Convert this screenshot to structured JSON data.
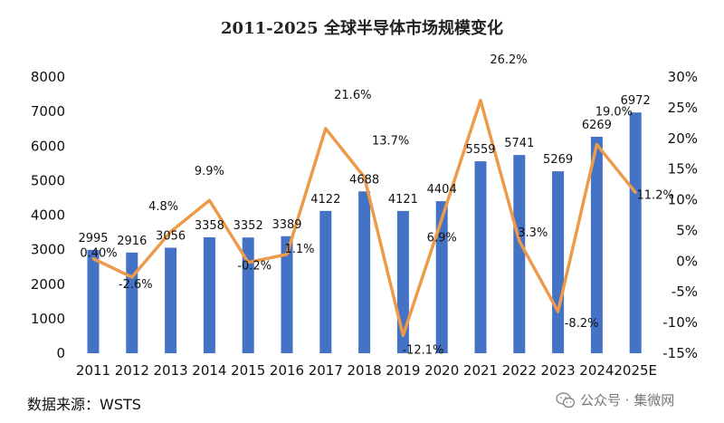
{
  "chart_data": {
    "type": "bar+line",
    "title": "2011-2025 全球半导体市场规模变化",
    "categories": [
      "2011",
      "2012",
      "2013",
      "2014",
      "2015",
      "2016",
      "2017",
      "2018",
      "2019",
      "2020",
      "2021",
      "2022",
      "2023",
      "2024",
      "2025E"
    ],
    "series": [
      {
        "kind": "bar",
        "axis": "left",
        "values": [
          2995,
          2916,
          3056,
          3358,
          3352,
          3389,
          4122,
          4688,
          4121,
          4404,
          5559,
          5741,
          5269,
          6269,
          6972
        ],
        "labels": [
          "2995",
          "2916",
          "3056",
          "3358",
          "3352",
          "3389",
          "4122",
          "4688",
          "4121",
          "4404",
          "5559",
          "5741",
          "5269",
          "6269",
          "6972"
        ]
      },
      {
        "kind": "line",
        "axis": "right",
        "values": [
          0.4,
          -2.6,
          4.8,
          9.9,
          -0.2,
          1.1,
          21.6,
          13.7,
          -12.1,
          6.9,
          26.2,
          3.3,
          -8.2,
          19.0,
          11.2
        ],
        "labels": [
          "0.40%",
          "-2.6%",
          "4.8%",
          "9.9%",
          "-0.2%",
          "1.1%",
          "21.6%",
          "13.7%",
          "-12.1%",
          "6.9%",
          "26.2%",
          "3.3%",
          "-8.2%",
          "19.0%",
          "11.2%"
        ]
      }
    ],
    "y_left": {
      "ylim": [
        0,
        8000
      ],
      "ticks": [
        "0",
        "1000",
        "2000",
        "3000",
        "4000",
        "5000",
        "6000",
        "7000",
        "8000"
      ]
    },
    "y_right": {
      "ylim": [
        -15,
        30
      ],
      "ticks": [
        "-15%",
        "-10%",
        "-5%",
        "0%",
        "5%",
        "10%",
        "15%",
        "20%",
        "25%",
        "30%"
      ]
    },
    "grid": false,
    "legend": "none",
    "colors": {
      "bar": "#4472C4",
      "line": "#ED9A4A"
    }
  },
  "footer": {
    "source": "数据来源：WSTS",
    "watermark": "公众号 · 集微网",
    "watermark_icon": "wechat-icon"
  }
}
